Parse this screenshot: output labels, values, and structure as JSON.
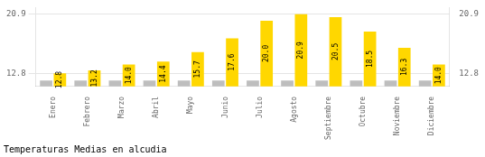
{
  "chart_data": {
    "type": "bar",
    "title": "Temperaturas Medias en alcudia",
    "categories": [
      "Enero",
      "Febrero",
      "Marzo",
      "Abril",
      "Mayo",
      "Junio",
      "Julio",
      "Agosto",
      "Septiembre",
      "Octubre",
      "Noviembre",
      "Diciembre"
    ],
    "series": [
      {
        "color": "#BEBEBE",
        "values": [
          11.8,
          11.8,
          11.8,
          11.8,
          11.8,
          11.8,
          11.8,
          11.8,
          11.8,
          11.8,
          11.8,
          11.8
        ]
      },
      {
        "color": "#FFD700",
        "values": [
          12.8,
          13.2,
          14.0,
          14.4,
          15.7,
          17.6,
          20.0,
          20.9,
          20.5,
          18.5,
          16.3,
          14.0
        ],
        "data_labels": true,
        "value_labels": [
          "12.8",
          "13.2",
          "14.0",
          "14.4",
          "15.7",
          "17.6",
          "20.0",
          "20.9",
          "20.5",
          "18.5",
          "16.3",
          "14.0"
        ]
      }
    ],
    "ylim": [
      11.0,
      21.8
    ],
    "yticks": [
      12.8,
      20.9
    ],
    "y2lim": [
      11.0,
      21.8
    ],
    "y2ticks": [
      12.8,
      20.9
    ],
    "grid": true
  }
}
